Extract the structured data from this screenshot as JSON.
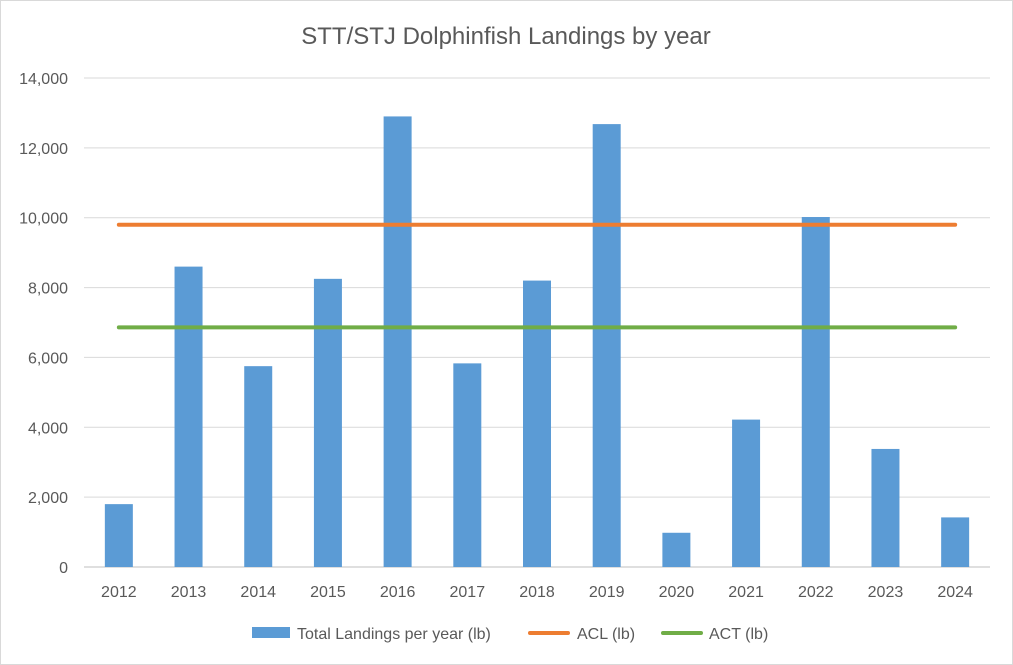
{
  "chart_data": {
    "type": "bar",
    "title": "STT/STJ Dolphinfish Landings by year",
    "xlabel": "",
    "ylabel": "",
    "categories": [
      "2012",
      "2013",
      "2014",
      "2015",
      "2016",
      "2017",
      "2018",
      "2019",
      "2020",
      "2021",
      "2022",
      "2023",
      "2024"
    ],
    "ylim": [
      0,
      14000
    ],
    "yticks": [
      0,
      2000,
      4000,
      6000,
      8000,
      10000,
      12000,
      14000
    ],
    "ytick_labels": [
      "0",
      "2,000",
      "4,000",
      "6,000",
      "8,000",
      "10,000",
      "12,000",
      "14,000"
    ],
    "grid": true,
    "legend_position": "bottom",
    "series": [
      {
        "name": "Total Landings per year (lb)",
        "type": "bar",
        "color": "#5b9bd5",
        "values": [
          1800,
          8600,
          5750,
          8250,
          12900,
          5830,
          8200,
          12680,
          980,
          4220,
          10020,
          3380,
          1420
        ]
      },
      {
        "name": "ACL (lb)",
        "type": "line",
        "color": "#ed7d31",
        "values": [
          9800,
          9800,
          9800,
          9800,
          9800,
          9800,
          9800,
          9800,
          9800,
          9800,
          9800,
          9800,
          9800
        ]
      },
      {
        "name": "ACT (lb)",
        "type": "line",
        "color": "#70ad47",
        "values": [
          6860,
          6860,
          6860,
          6860,
          6860,
          6860,
          6860,
          6860,
          6860,
          6860,
          6860,
          6860,
          6860
        ]
      }
    ]
  }
}
